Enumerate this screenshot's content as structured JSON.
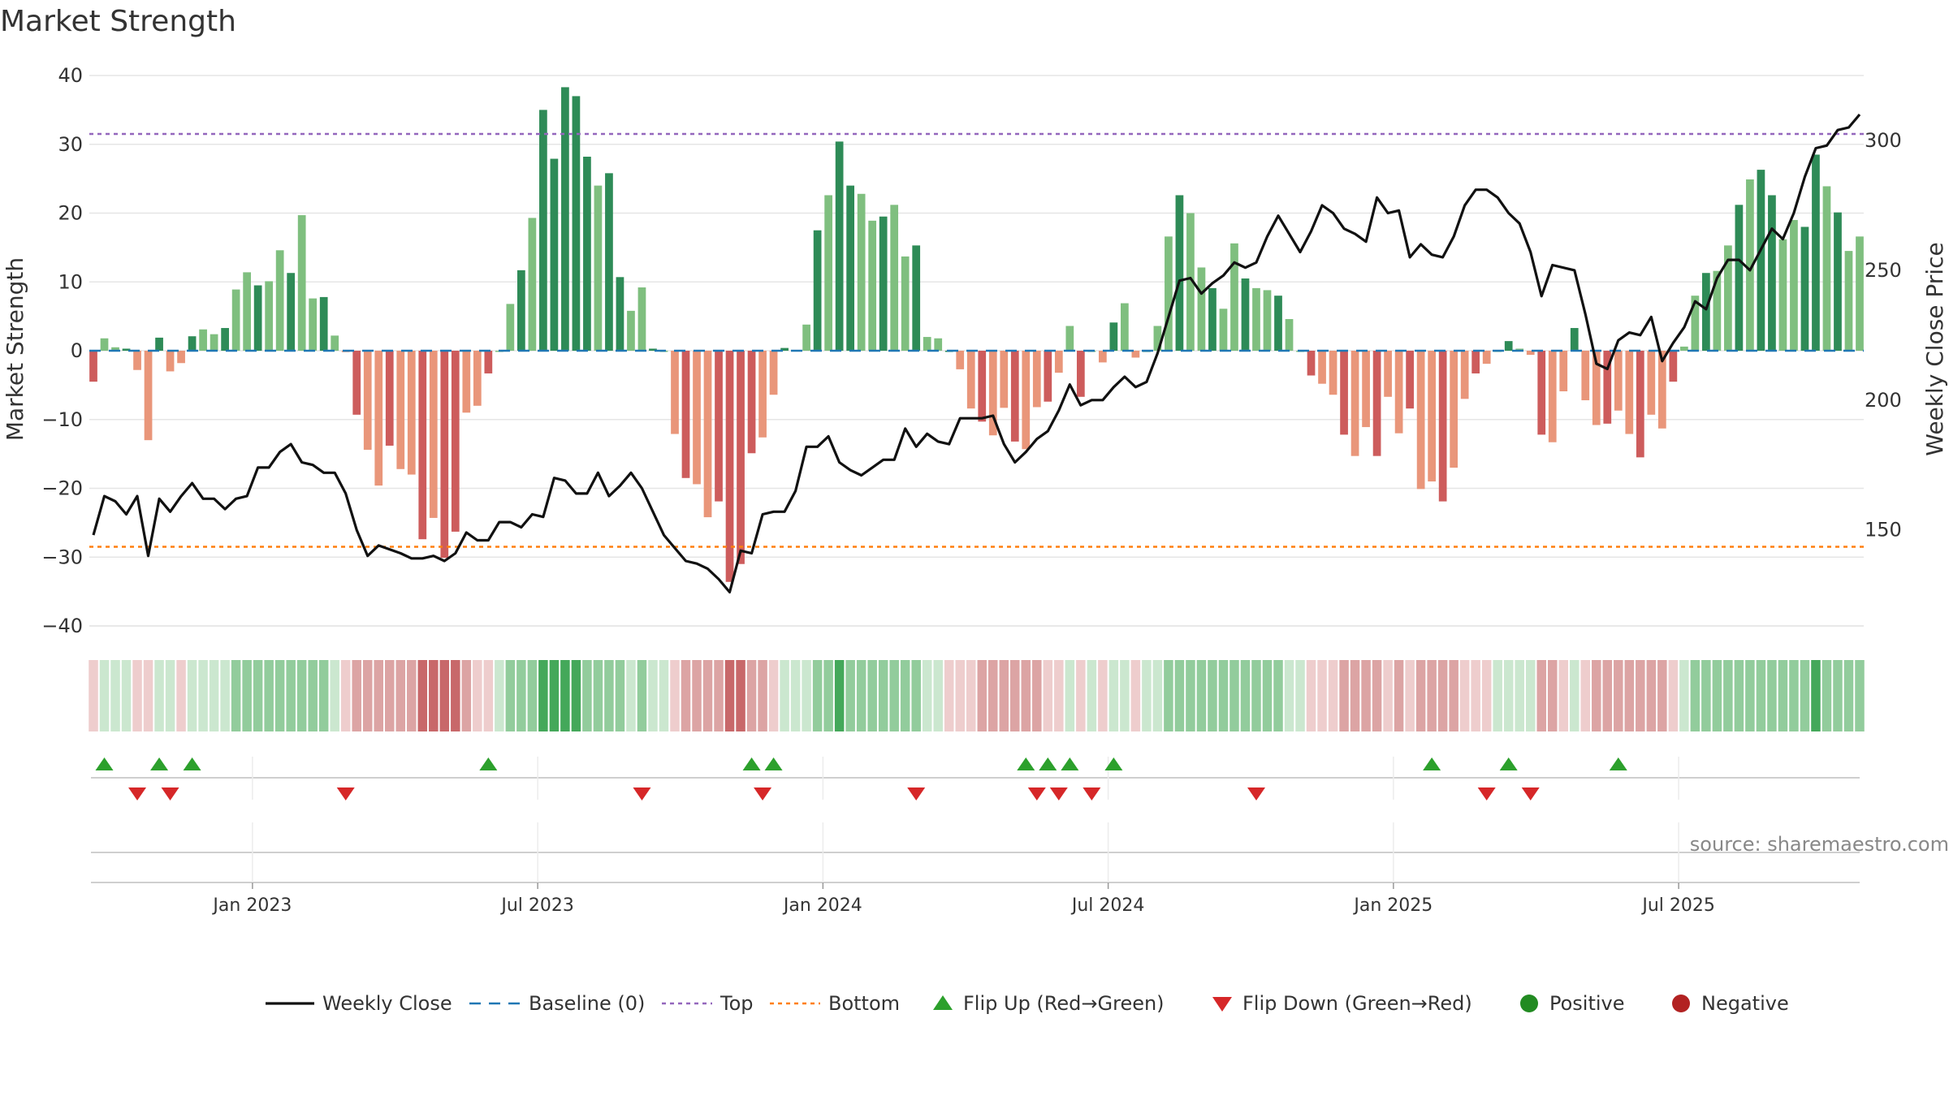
{
  "chart_data": {
    "type": "bar",
    "title": "Market Strength",
    "ylabel_left": "Market Strength",
    "ylabel_right": "Weekly Close Price",
    "ylim_left": [
      -40,
      40
    ],
    "yticks_left": [
      40,
      30,
      20,
      10,
      0,
      -10,
      -20,
      -30,
      -40
    ],
    "ylim_right": [
      113,
      325
    ],
    "yticks_right": [
      300,
      250,
      200,
      150
    ],
    "x_tick_labels": [
      "Jan 2023",
      "Jul 2023",
      "Jan 2024",
      "Jul 2024",
      "Jan 2025",
      "Jul 2025"
    ],
    "x_tick_index": [
      14.5,
      40.5,
      66.5,
      92.5,
      118.5,
      144.5
    ],
    "top_line": 31.5,
    "bottom_line": -28.5,
    "colors": {
      "pos_dark": "#2e8b57",
      "pos_light": "#7fbf7f",
      "neg_dark": "#cd5c5c",
      "neg_light": "#e9967a",
      "close": "#111111",
      "baseline": "#1f77b4",
      "top": "#9467bd",
      "bottom": "#ff7f0e",
      "flip_up": "#2ca02c",
      "flip_down": "#d62728",
      "positive": "#228b22",
      "negative": "#b22222"
    },
    "strength": [
      -4.5,
      1.8,
      0.5,
      0.3,
      -2.8,
      -13,
      1.9,
      -3,
      -1.8,
      2.1,
      3.1,
      2.4,
      3.3,
      8.9,
      11.4,
      9.5,
      10.1,
      14.6,
      11.3,
      19.7,
      7.6,
      7.8,
      2.2,
      -0.2,
      -9.3,
      -14.4,
      -19.6,
      -13.8,
      -17.2,
      -18.0,
      -27.4,
      -24.3,
      -30.1,
      -26.3,
      -9.0,
      -8.0,
      -3.3,
      0,
      6.8,
      11.7,
      19.3,
      35.0,
      27.9,
      38.3,
      37.0,
      28.2,
      24.0,
      25.8,
      10.7,
      5.8,
      9.2,
      0.3,
      0,
      -12.1,
      -18.5,
      -19.4,
      -24.2,
      -21.9,
      -33.6,
      -31.0,
      -14.9,
      -12.6,
      -6.4,
      0.4,
      0.1,
      3.8,
      17.5,
      22.6,
      30.4,
      24.0,
      22.8,
      18.9,
      19.5,
      21.2,
      13.7,
      15.3,
      2.0,
      1.8,
      0,
      -2.7,
      -8.4,
      -10.3,
      -12.3,
      -8.3,
      -13.2,
      -14.3,
      -8.2,
      -7.4,
      -3.2,
      3.6,
      -6.7,
      0,
      -1.7,
      4.1,
      6.9,
      -1.0,
      0,
      3.6,
      16.6,
      22.6,
      20.0,
      12.1,
      9.1,
      6.1,
      15.6,
      10.5,
      9.1,
      8.8,
      8.0,
      4.6,
      0,
      -3.6,
      -4.8,
      -6.4,
      -12.2,
      -15.3,
      -11.1,
      -15.3,
      -6.7,
      -12.0,
      -8.4,
      -20.1,
      -19.0,
      -21.9,
      -17.0,
      -7.0,
      -3.3,
      -1.9,
      0,
      1.4,
      0.3,
      -0.6,
      -12.2,
      -13.3,
      -5.9,
      3.3,
      -7.2,
      -10.8,
      -10.6,
      -8.7,
      -12.1,
      -15.5,
      -9.3,
      -11.3,
      -4.5,
      0.6,
      8.0,
      11.3,
      11.6,
      15.3,
      21.2,
      24.9,
      26.3,
      22.6,
      16.2,
      19.0,
      18.0,
      28.5,
      23.9,
      20.1,
      14.5,
      16.6
    ],
    "weekly_close": [
      148,
      163,
      161,
      156,
      163,
      140,
      162,
      157,
      163,
      168,
      162,
      162,
      158,
      162,
      163,
      174,
      174,
      180,
      183,
      176,
      175,
      172,
      172,
      164,
      150,
      140,
      144,
      141,
      139,
      139,
      140,
      138,
      141,
      149,
      146,
      146,
      153,
      153,
      151,
      156,
      155,
      170,
      169,
      164,
      164,
      172,
      163,
      167,
      172,
      166,
      157,
      148,
      143,
      138,
      137,
      135,
      131,
      126,
      142,
      141,
      156,
      157,
      157,
      165,
      182,
      182,
      186,
      176,
      173,
      171,
      174,
      177,
      177,
      189,
      182,
      187,
      184,
      183,
      193,
      193,
      194,
      183,
      176,
      180,
      185,
      188,
      196,
      206,
      198,
      200,
      200,
      205,
      209,
      205,
      207,
      218,
      232,
      246,
      247,
      241,
      245,
      248,
      253,
      251,
      253,
      263,
      271,
      264,
      257,
      265,
      275,
      272,
      266,
      264,
      261,
      278,
      272,
      273,
      255,
      260,
      256,
      255,
      263,
      275,
      281,
      281,
      278,
      272,
      268,
      257,
      240,
      252,
      250,
      233,
      214,
      212,
      223,
      226,
      225,
      232,
      215,
      222,
      228,
      238,
      235,
      247,
      254,
      254,
      250,
      258,
      266,
      262,
      272,
      286,
      297,
      298,
      304,
      305,
      310
    ],
    "regime_heat": [
      -1,
      1,
      1,
      1,
      -1,
      -1,
      1,
      1,
      -1,
      1,
      1,
      1,
      1,
      2,
      2,
      2,
      2,
      2,
      2,
      2,
      2,
      2,
      1,
      -1,
      -2,
      -2,
      -2,
      -2,
      -2,
      -2,
      -3,
      -3,
      -3,
      -3,
      -2,
      -1,
      -1,
      1,
      2,
      2,
      2,
      3,
      3,
      3,
      3,
      2,
      2,
      2,
      2,
      1,
      2,
      1,
      1,
      -1,
      -2,
      -2,
      -2,
      -2,
      -3,
      -3,
      -2,
      -2,
      -1,
      1,
      1,
      1,
      2,
      2,
      3,
      2,
      2,
      2,
      2,
      2,
      2,
      2,
      1,
      1,
      -1,
      -1,
      -1,
      -2,
      -2,
      -2,
      -2,
      -2,
      -2,
      -1,
      -1,
      1,
      -1,
      1,
      -1,
      1,
      1,
      -1,
      1,
      1,
      2,
      2,
      2,
      2,
      2,
      2,
      2,
      2,
      2,
      2,
      2,
      1,
      1,
      -1,
      -1,
      -1,
      -2,
      -2,
      -2,
      -2,
      -1,
      -2,
      -1,
      -2,
      -2,
      -2,
      -2,
      -1,
      -1,
      -1,
      1,
      1,
      1,
      1,
      -2,
      -2,
      -1,
      1,
      -1,
      -2,
      -2,
      -2,
      -2,
      -2,
      -2,
      -2,
      -1,
      1,
      2,
      2,
      2,
      2,
      2,
      2,
      2,
      2,
      2,
      2,
      2,
      3,
      2,
      2,
      2,
      2
    ],
    "flip_up_index": [
      1,
      6,
      9,
      36,
      60,
      62,
      85,
      87,
      89,
      93,
      122,
      129,
      139
    ],
    "flip_down_index": [
      4,
      7,
      23,
      50,
      61,
      75,
      86,
      88,
      91,
      106,
      127,
      131
    ],
    "legend": [
      {
        "kind": "line",
        "label": "Weekly Close"
      },
      {
        "kind": "dash",
        "label": "Baseline (0)"
      },
      {
        "kind": "dot-top",
        "label": "Top"
      },
      {
        "kind": "dot-bottom",
        "label": "Bottom"
      },
      {
        "kind": "tri-up",
        "label": "Flip Up (Red→Green)"
      },
      {
        "kind": "tri-down",
        "label": "Flip Down (Green→Red)"
      },
      {
        "kind": "circle-pos",
        "label": "Positive"
      },
      {
        "kind": "circle-neg",
        "label": "Negative"
      }
    ],
    "source": "source: sharemaestro.com"
  }
}
